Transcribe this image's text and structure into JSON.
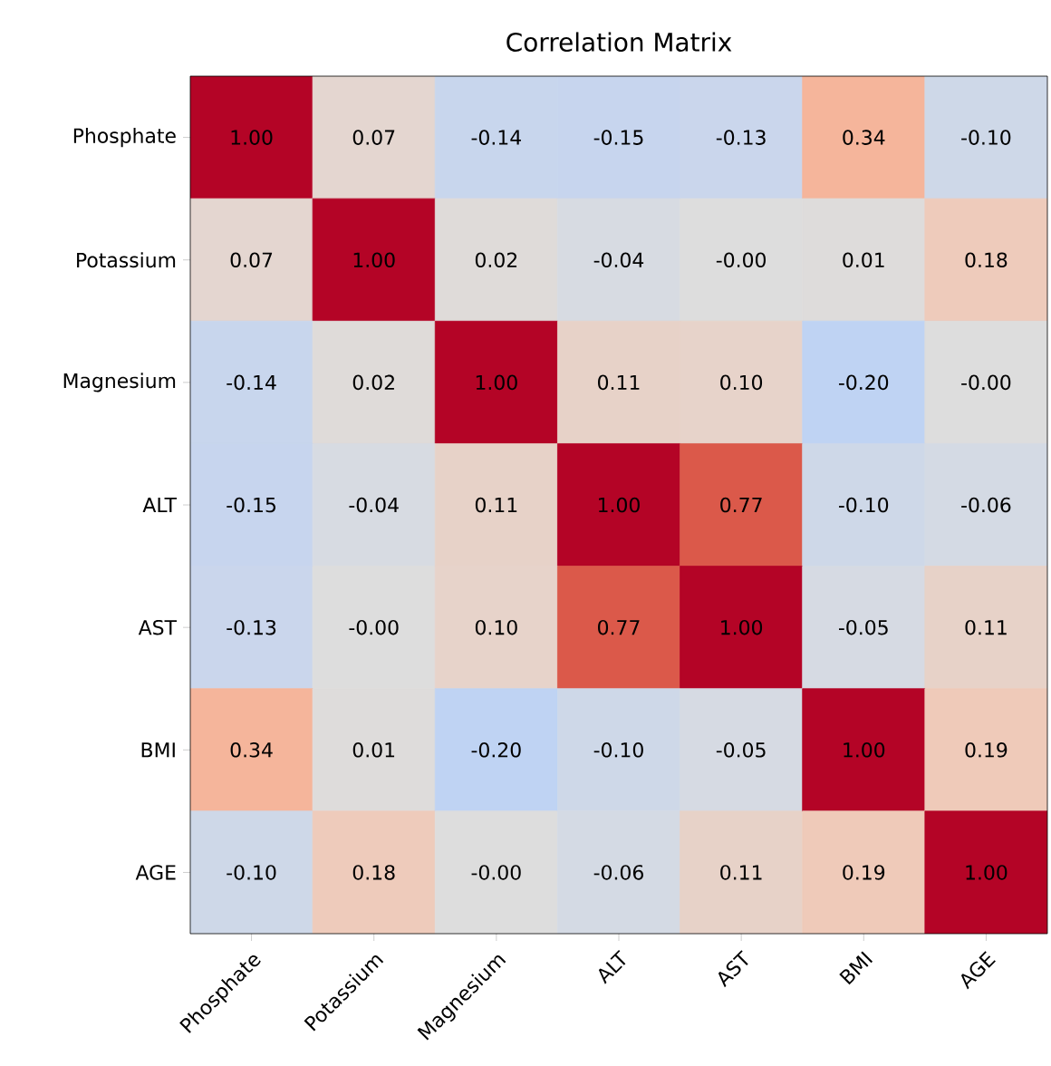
{
  "chart_data": {
    "type": "heatmap",
    "title": "Correlation Matrix",
    "categories": [
      "Phosphate",
      "Potassium",
      "Magnesium",
      "ALT",
      "AST",
      "BMI",
      "AGE"
    ],
    "y_categories": [
      "Phosphate",
      "Potassium",
      "Magnesium",
      "ALT",
      "AST",
      "BMI",
      "AGE"
    ],
    "cells": [
      [
        1.0,
        0.07,
        -0.14,
        -0.15,
        -0.13,
        0.34,
        -0.1
      ],
      [
        0.07,
        1.0,
        0.02,
        -0.04,
        -0.0,
        0.01,
        0.18
      ],
      [
        -0.14,
        0.02,
        1.0,
        0.11,
        0.1,
        -0.2,
        -0.0
      ],
      [
        -0.15,
        -0.04,
        0.11,
        1.0,
        0.77,
        -0.1,
        -0.06
      ],
      [
        -0.13,
        -0.0,
        0.1,
        0.77,
        1.0,
        -0.05,
        0.11
      ],
      [
        0.34,
        0.01,
        -0.2,
        -0.1,
        -0.05,
        1.0,
        0.19
      ],
      [
        -0.1,
        0.18,
        -0.0,
        -0.06,
        0.11,
        0.19,
        1.0
      ]
    ],
    "cell_labels": [
      [
        "1.00",
        "0.07",
        "-0.14",
        "-0.15",
        "-0.13",
        "0.34",
        "-0.10"
      ],
      [
        "0.07",
        "1.00",
        "0.02",
        "-0.04",
        "-0.00",
        "0.01",
        "0.18"
      ],
      [
        "-0.14",
        "0.02",
        "1.00",
        "0.11",
        "0.10",
        "-0.20",
        "-0.00"
      ],
      [
        "-0.15",
        "-0.04",
        "0.11",
        "1.00",
        "0.77",
        "-0.10",
        "-0.06"
      ],
      [
        "-0.13",
        "-0.00",
        "0.10",
        "0.77",
        "1.00",
        "-0.05",
        "0.11"
      ],
      [
        "0.34",
        "0.01",
        "-0.20",
        "-0.10",
        "-0.05",
        "1.00",
        "0.19"
      ],
      [
        "-0.10",
        "0.18",
        "-0.00",
        "-0.06",
        "0.11",
        "0.19",
        "1.00"
      ]
    ]
  }
}
